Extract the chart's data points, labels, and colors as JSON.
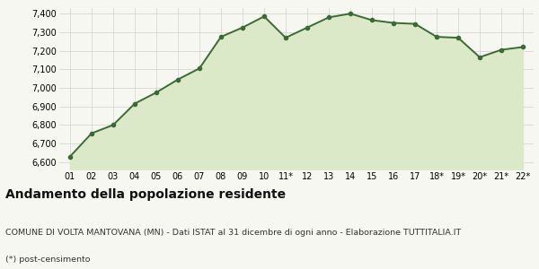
{
  "x_labels": [
    "01",
    "02",
    "03",
    "04",
    "05",
    "06",
    "07",
    "08",
    "09",
    "10",
    "11*",
    "12",
    "13",
    "14",
    "15",
    "16",
    "17",
    "18*",
    "19*",
    "20*",
    "21*",
    "22*"
  ],
  "y_values": [
    6630,
    6755,
    6800,
    6915,
    6975,
    7045,
    7105,
    7275,
    7325,
    7385,
    7270,
    7325,
    7380,
    7400,
    7365,
    7350,
    7345,
    7275,
    7270,
    7165,
    7205,
    7220
  ],
  "line_color": "#3a6b35",
  "fill_color": "#dce9c8",
  "marker": "o",
  "marker_size": 3.0,
  "line_width": 1.4,
  "ylim": [
    6560,
    7430
  ],
  "yticks": [
    6600,
    6700,
    6800,
    6900,
    7000,
    7100,
    7200,
    7300,
    7400
  ],
  "title": "Andamento della popolazione residente",
  "subtitle": "COMUNE DI VOLTA MANTOVANA (MN) - Dati ISTAT al 31 dicembre di ogni anno - Elaborazione TUTTITALIA.IT",
  "footnote": "(*) post-censimento",
  "title_fontsize": 10,
  "subtitle_fontsize": 6.8,
  "footnote_fontsize": 6.8,
  "bg_color": "#f7f7f2",
  "grid_color": "#d0d0d0",
  "tick_fontsize": 7.0,
  "fill_baseline": 6560
}
